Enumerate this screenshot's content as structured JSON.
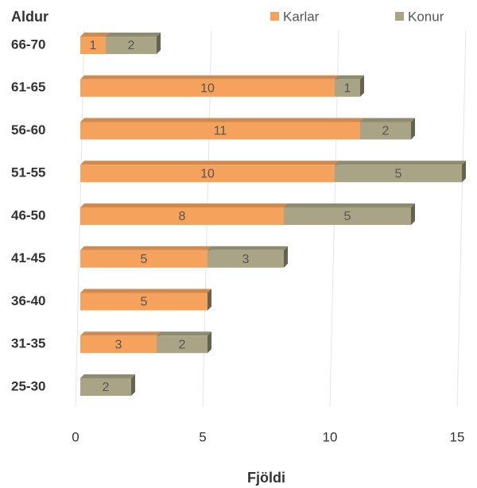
{
  "chart_data": {
    "type": "stacked_bar_horizontal",
    "y_axis_label": "Aldur",
    "x_axis_label": "Fjöldi",
    "categories": [
      "66-70",
      "61-65",
      "56-60",
      "51-55",
      "46-50",
      "41-45",
      "36-40",
      "31-35",
      "25-30"
    ],
    "series": [
      {
        "name": "Karlar",
        "color": "#f5a25d",
        "values": [
          1,
          10,
          11,
          10,
          8,
          5,
          5,
          3,
          0
        ]
      },
      {
        "name": "Konur",
        "color": "#a8a485",
        "values": [
          2,
          1,
          2,
          5,
          5,
          3,
          0,
          2,
          2
        ]
      }
    ],
    "xlim": [
      0,
      15
    ],
    "xticks": [
      0,
      5,
      10,
      15
    ],
    "grid": true,
    "legend": "top"
  }
}
